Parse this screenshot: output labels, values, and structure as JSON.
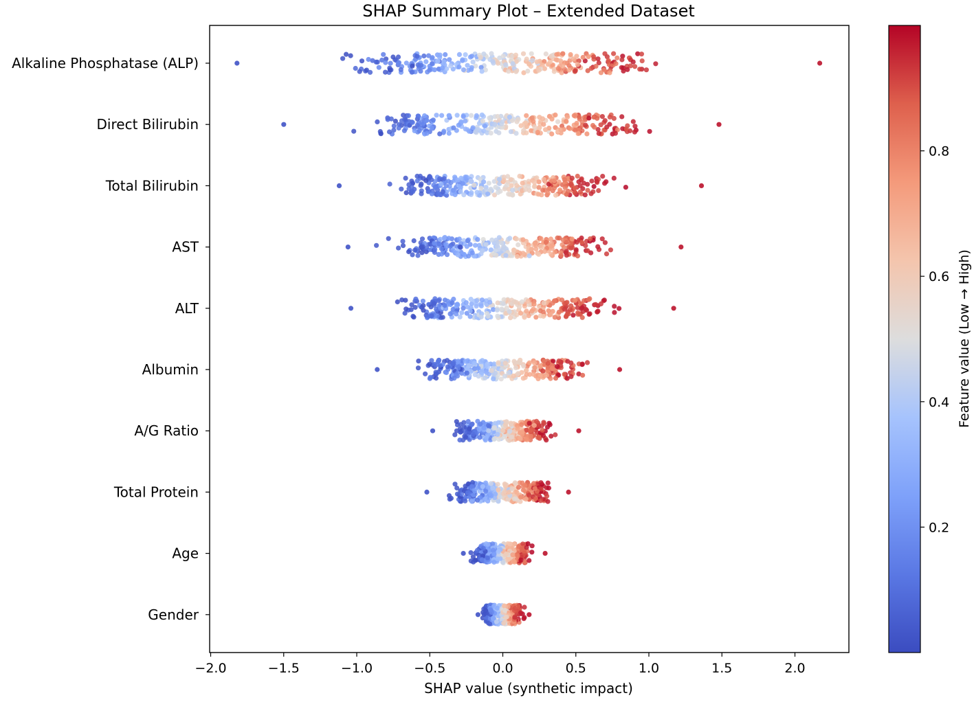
{
  "chart_data": {
    "type": "scatter",
    "subtype": "shap-beeswarm",
    "title": "SHAP Summary Plot – Extended Dataset",
    "xlabel": "SHAP value (synthetic impact)",
    "ylabel": "",
    "xlim": [
      -2.0,
      2.4
    ],
    "xticks": [
      -2.0,
      -1.5,
      -1.0,
      -0.5,
      0.0,
      0.5,
      1.0,
      1.5,
      2.0
    ],
    "xtick_labels": [
      "−2.0",
      "−1.5",
      "−1.0",
      "−0.5",
      "0.0",
      "0.5",
      "1.0",
      "1.5",
      "2.0"
    ],
    "grid": false,
    "features": [
      {
        "name": "Alkaline Phosphatase (ALP)",
        "min": -1.82,
        "max": 2.17,
        "spread": 0.48
      },
      {
        "name": "Direct Bilirubin",
        "min": -1.5,
        "max": 1.48,
        "spread": 0.42
      },
      {
        "name": "Total Bilirubin",
        "min": -1.12,
        "max": 1.36,
        "spread": 0.33
      },
      {
        "name": "AST",
        "min": -1.06,
        "max": 1.22,
        "spread": 0.32
      },
      {
        "name": "ALT",
        "min": -1.04,
        "max": 1.17,
        "spread": 0.32
      },
      {
        "name": "Albumin",
        "min": -0.86,
        "max": 0.8,
        "spread": 0.25
      },
      {
        "name": "A/G Ratio",
        "min": -0.48,
        "max": 0.52,
        "spread": 0.15
      },
      {
        "name": "Total Protein",
        "min": -0.52,
        "max": 0.45,
        "spread": 0.15
      },
      {
        "name": "Age",
        "min": -0.27,
        "max": 0.29,
        "spread": 0.09
      },
      {
        "name": "Gender",
        "min": -0.17,
        "max": 0.18,
        "spread": 0.06
      }
    ],
    "points_per_feature": 300,
    "colorbar": {
      "label": "Feature value (Low → High)",
      "colormap": "coolwarm",
      "range": [
        0.0,
        1.0
      ],
      "ticks": [
        0.2,
        0.4,
        0.6,
        0.8
      ],
      "tick_labels": [
        "0.2",
        "0.4",
        "0.6",
        "0.8"
      ]
    },
    "colors": {
      "low": "#3b4cc0",
      "mid": "#dddddd",
      "high": "#b40426"
    }
  }
}
